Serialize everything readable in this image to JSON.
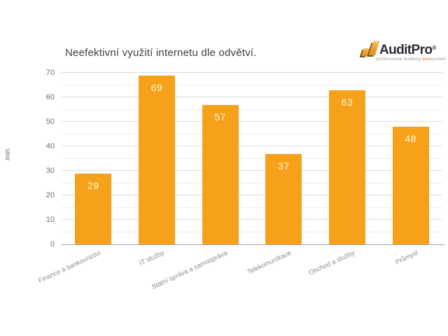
{
  "logo": {
    "wordmark": "AuditPro",
    "registered_mark": "®",
    "tagline_pre": "professional auditing ",
    "tagline_eco": "eco",
    "tagline_post": "system",
    "brand_orange": "#ED9F33",
    "brand_dark": "#2C2C35"
  },
  "chart_data": {
    "type": "bar",
    "title": "Neefektivní využití internetu dle odvětví.",
    "categories": [
      "Finance a bankovnictví",
      "IT služby",
      "Státní správa a samospráva",
      "Telekomunikace",
      "Obchod a služby",
      "Průmysl"
    ],
    "values": [
      29,
      69,
      57,
      37,
      63,
      48
    ],
    "xlabel": "",
    "ylabel": "min.",
    "ylim": [
      0,
      70
    ],
    "yticks": [
      0,
      10,
      20,
      30,
      40,
      50,
      60,
      70
    ],
    "grid": "horizontal minor every 5, major every 10",
    "grid_step": 5,
    "legend": "none",
    "bar_color": "#F7A11A",
    "bar_label_color": "#FEF6D8"
  }
}
